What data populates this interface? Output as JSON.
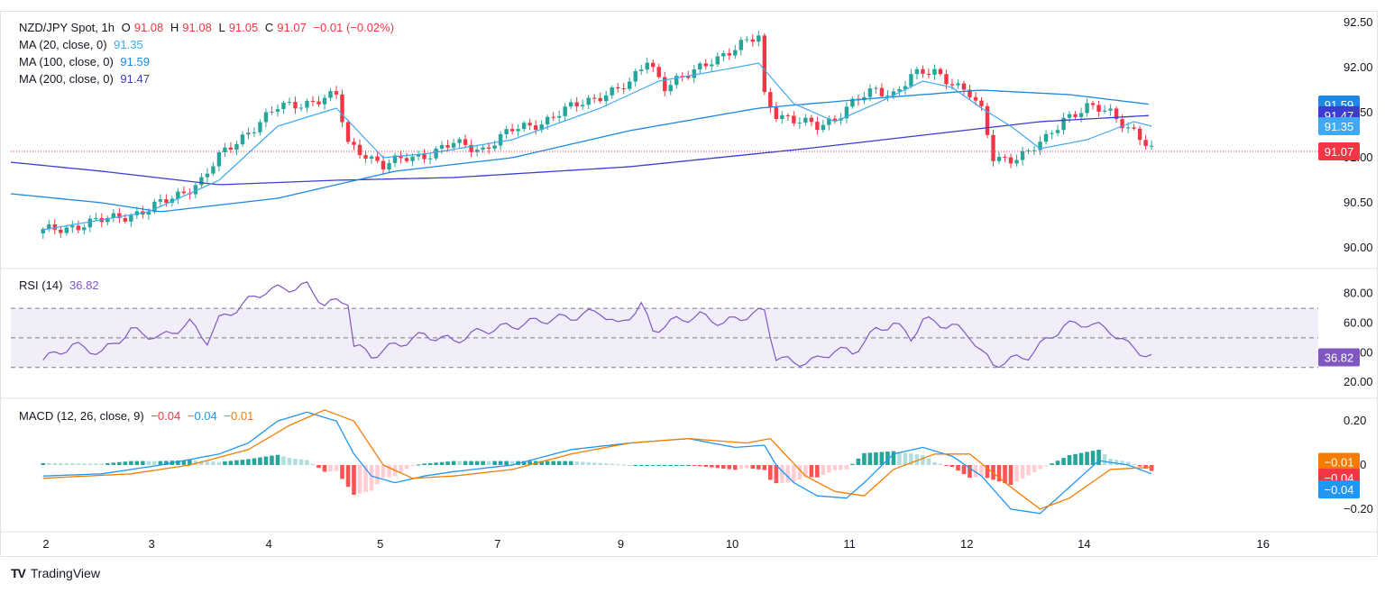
{
  "header": {
    "symbol": "NZD/JPY Spot, 1h",
    "open_label": "O",
    "open": "91.08",
    "high_label": "H",
    "high": "91.08",
    "low_label": "L",
    "low": "91.05",
    "close_label": "C",
    "close": "91.07",
    "change": "−0.01 (−0.02%)"
  },
  "ma_legend": [
    {
      "label": "MA (20, close, 0)",
      "value": "91.35",
      "color": "#3fa9f5"
    },
    {
      "label": "MA (100, close, 0)",
      "value": "91.59",
      "color": "#1e88e5"
    },
    {
      "label": "MA (200, close, 0)",
      "value": "91.47",
      "color": "#3c3ccf"
    }
  ],
  "rsi_legend": {
    "label": "RSI (14)",
    "value": "36.82",
    "color": "#7e57c2"
  },
  "macd_legend": {
    "label": "MACD (12, 26, close, 9)",
    "hist": "−0.04",
    "macd": "−0.04",
    "signal": "−0.01"
  },
  "brand": {
    "logo": "TV",
    "name": "TradingView"
  },
  "colors": {
    "up": "#26a69a",
    "down": "#f23645",
    "ma20": "#3fa9f5",
    "ma100": "#1e88e5",
    "ma200": "#3c3ccf",
    "rsi": "#7e57c2",
    "macd": "#2196f3",
    "signal": "#f57c00"
  },
  "chart_data": [
    {
      "type": "candlestick",
      "pane": "price",
      "title": "NZD/JPY Spot, 1h",
      "x_ticks": [
        "2",
        "3",
        "4",
        "5",
        "7",
        "9",
        "10",
        "11",
        "12",
        "14",
        "16"
      ],
      "x_tick_pos": [
        0.5,
        18.5,
        38.5,
        57.5,
        77.5,
        98.5,
        117.5,
        137.5,
        157.5,
        177.5,
        208
      ],
      "x_range": [
        -5.5,
        216.5
      ],
      "y_ticks": [
        "92.50",
        "92.00",
        "91.50",
        "91.00",
        "90.50",
        "90.00"
      ],
      "ylim": [
        89.85,
        92.55
      ],
      "last_price": "91.07",
      "axis_badges": [
        {
          "value": "91.59",
          "color": "#1e88e5"
        },
        {
          "value": "91.47",
          "color": "#3c3ccf"
        },
        {
          "value": "91.35",
          "color": "#3fa9f5"
        },
        {
          "value": "91.07",
          "color": "#f23645"
        }
      ],
      "close_anchors": [
        [
          0,
          90.18
        ],
        [
          10,
          90.3
        ],
        [
          18,
          90.42
        ],
        [
          22,
          90.55
        ],
        [
          27,
          90.75
        ],
        [
          30,
          91.0
        ],
        [
          35,
          91.3
        ],
        [
          40,
          91.55
        ],
        [
          45,
          91.62
        ],
        [
          50,
          91.68
        ],
        [
          52,
          91.15
        ],
        [
          55,
          91.05
        ],
        [
          58,
          90.9
        ],
        [
          62,
          91.0
        ],
        [
          66,
          91.05
        ],
        [
          70,
          91.15
        ],
        [
          75,
          91.1
        ],
        [
          80,
          91.3
        ],
        [
          85,
          91.4
        ],
        [
          90,
          91.55
        ],
        [
          95,
          91.7
        ],
        [
          100,
          91.8
        ],
        [
          103,
          92.1
        ],
        [
          106,
          91.8
        ],
        [
          110,
          91.9
        ],
        [
          114,
          92.1
        ],
        [
          118,
          92.2
        ],
        [
          122,
          92.35
        ],
        [
          123,
          91.7
        ],
        [
          125,
          91.5
        ],
        [
          128,
          91.4
        ],
        [
          132,
          91.35
        ],
        [
          135,
          91.45
        ],
        [
          138,
          91.6
        ],
        [
          142,
          91.75
        ],
        [
          145,
          91.72
        ],
        [
          148,
          91.9
        ],
        [
          152,
          91.95
        ],
        [
          155,
          91.85
        ],
        [
          158,
          91.7
        ],
        [
          160,
          91.5
        ],
        [
          162,
          91.0
        ],
        [
          165,
          91.0
        ],
        [
          168,
          91.05
        ],
        [
          171,
          91.2
        ],
        [
          174,
          91.45
        ],
        [
          178,
          91.55
        ],
        [
          182,
          91.5
        ],
        [
          186,
          91.3
        ],
        [
          189,
          91.07
        ]
      ],
      "ma20_anchors": [
        [
          0,
          90.2
        ],
        [
          18,
          90.4
        ],
        [
          30,
          90.75
        ],
        [
          40,
          91.35
        ],
        [
          50,
          91.55
        ],
        [
          58,
          91.0
        ],
        [
          66,
          91.05
        ],
        [
          80,
          91.2
        ],
        [
          95,
          91.55
        ],
        [
          105,
          91.85
        ],
        [
          118,
          92.0
        ],
        [
          122,
          92.05
        ],
        [
          128,
          91.6
        ],
        [
          135,
          91.4
        ],
        [
          142,
          91.6
        ],
        [
          150,
          91.85
        ],
        [
          155,
          91.78
        ],
        [
          160,
          91.55
        ],
        [
          165,
          91.35
        ],
        [
          170,
          91.1
        ],
        [
          178,
          91.2
        ],
        [
          186,
          91.4
        ],
        [
          189,
          91.35
        ]
      ],
      "ma100_anchors": [
        [
          -5.5,
          90.6
        ],
        [
          10,
          90.5
        ],
        [
          20,
          90.4
        ],
        [
          40,
          90.55
        ],
        [
          60,
          90.85
        ],
        [
          80,
          91.0
        ],
        [
          100,
          91.3
        ],
        [
          122,
          91.55
        ],
        [
          140,
          91.65
        ],
        [
          160,
          91.75
        ],
        [
          175,
          91.7
        ],
        [
          189,
          91.59
        ]
      ],
      "ma200_anchors": [
        [
          -5.5,
          90.95
        ],
        [
          10,
          90.85
        ],
        [
          30,
          90.7
        ],
        [
          50,
          90.75
        ],
        [
          70,
          90.78
        ],
        [
          100,
          90.9
        ],
        [
          130,
          91.1
        ],
        [
          150,
          91.25
        ],
        [
          170,
          91.4
        ],
        [
          189,
          91.47
        ]
      ]
    },
    {
      "type": "line",
      "pane": "rsi",
      "title": "RSI (14)",
      "y_ticks": [
        "80.00",
        "60.00",
        "40.00",
        "20.00"
      ],
      "ylim": [
        14,
        92
      ],
      "bands": [
        30,
        50,
        70
      ],
      "last_value": "36.82",
      "rsi_anchors": [
        [
          0,
          35
        ],
        [
          5,
          45
        ],
        [
          10,
          40
        ],
        [
          15,
          55
        ],
        [
          20,
          50
        ],
        [
          25,
          60
        ],
        [
          28,
          48
        ],
        [
          30,
          62
        ],
        [
          35,
          75
        ],
        [
          38,
          82
        ],
        [
          45,
          85
        ],
        [
          48,
          73
        ],
        [
          52,
          75
        ],
        [
          53,
          45
        ],
        [
          56,
          38
        ],
        [
          60,
          45
        ],
        [
          65,
          52
        ],
        [
          70,
          48
        ],
        [
          75,
          55
        ],
        [
          80,
          58
        ],
        [
          85,
          62
        ],
        [
          90,
          64
        ],
        [
          95,
          68
        ],
        [
          98,
          58
        ],
        [
          100,
          65
        ],
        [
          102,
          72
        ],
        [
          104,
          55
        ],
        [
          108,
          62
        ],
        [
          112,
          65
        ],
        [
          116,
          60
        ],
        [
          120,
          65
        ],
        [
          123,
          68
        ],
        [
          125,
          37
        ],
        [
          128,
          33
        ],
        [
          132,
          35
        ],
        [
          135,
          42
        ],
        [
          138,
          40
        ],
        [
          142,
          55
        ],
        [
          145,
          60
        ],
        [
          148,
          50
        ],
        [
          150,
          62
        ],
        [
          155,
          58
        ],
        [
          158,
          52
        ],
        [
          160,
          40
        ],
        [
          162,
          32
        ],
        [
          165,
          35
        ],
        [
          168,
          38
        ],
        [
          171,
          48
        ],
        [
          174,
          58
        ],
        [
          178,
          60
        ],
        [
          182,
          55
        ],
        [
          185,
          45
        ],
        [
          189,
          37
        ]
      ]
    },
    {
      "type": "macd",
      "pane": "macd",
      "title": "MACD (12, 26, close, 9)",
      "y_ticks": [
        "0.20",
        "0.00",
        "−0.20"
      ],
      "ylim": [
        -0.27,
        0.27
      ],
      "axis_badges": [
        {
          "value": "−0.01",
          "color": "#f57c00"
        },
        {
          "value": "−0.04",
          "color": "#f23645"
        },
        {
          "value": "−0.04",
          "color": "#2196f3"
        }
      ],
      "macd_anchors": [
        [
          0,
          -0.05
        ],
        [
          10,
          -0.04
        ],
        [
          20,
          0.0
        ],
        [
          30,
          0.05
        ],
        [
          35,
          0.1
        ],
        [
          40,
          0.2
        ],
        [
          45,
          0.24
        ],
        [
          50,
          0.2
        ],
        [
          53,
          0.05
        ],
        [
          56,
          -0.05
        ],
        [
          60,
          -0.08
        ],
        [
          65,
          -0.05
        ],
        [
          70,
          -0.03
        ],
        [
          80,
          0.0
        ],
        [
          90,
          0.07
        ],
        [
          100,
          0.1
        ],
        [
          110,
          0.12
        ],
        [
          118,
          0.08
        ],
        [
          123,
          0.09
        ],
        [
          125,
          0.0
        ],
        [
          128,
          -0.08
        ],
        [
          132,
          -0.14
        ],
        [
          137,
          -0.15
        ],
        [
          140,
          -0.08
        ],
        [
          145,
          0.05
        ],
        [
          150,
          0.08
        ],
        [
          155,
          0.04
        ],
        [
          160,
          -0.05
        ],
        [
          165,
          -0.2
        ],
        [
          170,
          -0.22
        ],
        [
          175,
          -0.1
        ],
        [
          180,
          0.02
        ],
        [
          185,
          0.0
        ],
        [
          189,
          -0.04
        ]
      ],
      "signal_anchors": [
        [
          0,
          -0.06
        ],
        [
          15,
          -0.04
        ],
        [
          25,
          0.0
        ],
        [
          35,
          0.07
        ],
        [
          42,
          0.18
        ],
        [
          48,
          0.25
        ],
        [
          53,
          0.2
        ],
        [
          58,
          0.0
        ],
        [
          63,
          -0.06
        ],
        [
          70,
          -0.05
        ],
        [
          80,
          -0.02
        ],
        [
          90,
          0.05
        ],
        [
          100,
          0.1
        ],
        [
          110,
          0.12
        ],
        [
          120,
          0.1
        ],
        [
          124,
          0.12
        ],
        [
          130,
          -0.05
        ],
        [
          135,
          -0.12
        ],
        [
          140,
          -0.14
        ],
        [
          145,
          -0.02
        ],
        [
          152,
          0.05
        ],
        [
          158,
          0.05
        ],
        [
          165,
          -0.1
        ],
        [
          170,
          -0.2
        ],
        [
          175,
          -0.15
        ],
        [
          182,
          -0.02
        ],
        [
          189,
          -0.01
        ]
      ]
    }
  ]
}
